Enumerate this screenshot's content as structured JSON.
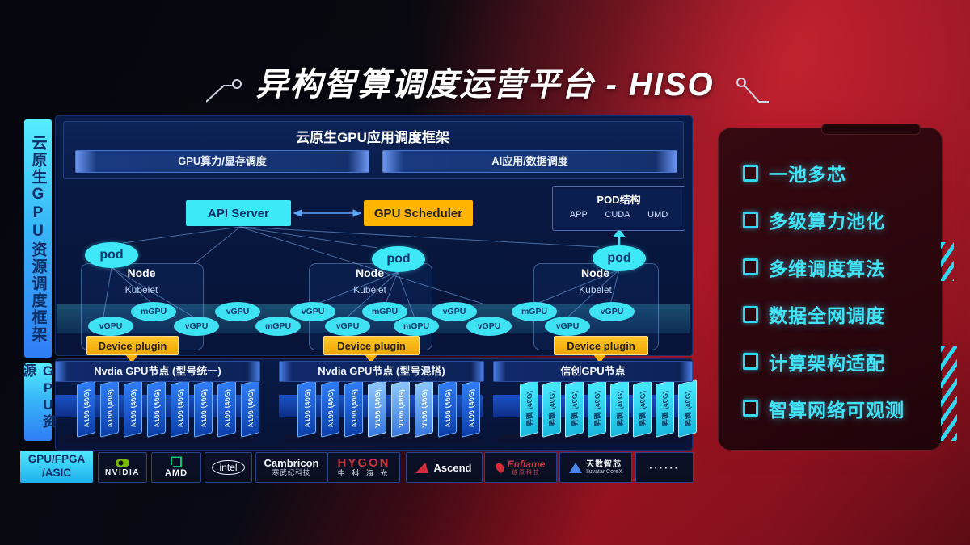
{
  "title": {
    "text": "异构智算调度运营平台 - HISO"
  },
  "sidebar": {
    "bar1": "云原生GPU资源调度框架",
    "bar2": "GPU资源"
  },
  "framework": {
    "heading": "云原生GPU应用调度框架",
    "left_bar": "GPU算力/显存调度",
    "right_bar": "AI应用/数据调度"
  },
  "scheduler": {
    "api_server": "API Server",
    "gpu_scheduler": "GPU Scheduler"
  },
  "pod_struct": {
    "title": "POD结构",
    "items": [
      "APP",
      "CUDA",
      "UMD"
    ]
  },
  "node_groups": [
    {
      "node": "Node",
      "kubelet": "Kubelet",
      "pod": "pod",
      "device_plugin": "Device plugin"
    },
    {
      "node": "Node",
      "kubelet": "Kubelet",
      "pod": "pod",
      "device_plugin": "Device plugin"
    },
    {
      "node": "Node",
      "kubelet": "Kubelet",
      "pod": "pod",
      "device_plugin": "Device plugin"
    }
  ],
  "gpu_ellipses": [
    {
      "label": "vGPU",
      "row": "low"
    },
    {
      "label": "mGPU",
      "row": "high"
    },
    {
      "label": "vGPU",
      "row": "low"
    },
    {
      "label": "vGPU",
      "row": "high"
    },
    {
      "label": "mGPU",
      "row": "low"
    },
    {
      "label": "vGPU",
      "row": "high"
    },
    {
      "label": "vGPU",
      "row": "low"
    },
    {
      "label": "mGPU",
      "row": "high"
    },
    {
      "label": "mGPU",
      "row": "low"
    },
    {
      "label": "vGPU",
      "row": "high"
    },
    {
      "label": "vGPU",
      "row": "low"
    },
    {
      "label": "mGPU",
      "row": "high"
    },
    {
      "label": "vGPU",
      "row": "low"
    },
    {
      "label": "vGPU",
      "row": "high"
    }
  ],
  "gpu_sections": [
    {
      "bar_label": "Nvdia GPU节点 (型号统一)",
      "cards": [
        "A100 (40G)",
        "A100 (40G)",
        "A100 (40G)",
        "A100 (40G)",
        "A100 (40G)",
        "A100 (40G)",
        "A100 (40G)",
        "A100 (40G)"
      ]
    },
    {
      "bar_label": "Nvdia GPU节点 (型号混搭)",
      "cards": [
        "A100 (40G)",
        "A100 (40G)",
        "A100 (40G)",
        "V100 (40G)",
        "V100 (40G)",
        "V100 (40G)",
        "A100 (40G)",
        "A100 (40G)"
      ]
    },
    {
      "bar_label": "信创GPU节点",
      "cards": [
        "昇腾 (40G)",
        "昇腾 (40G)",
        "昇腾 (40G)",
        "昇腾 (40G)",
        "昇腾 (40G)",
        "昇腾 (40G)",
        "昇腾 (40G)",
        "昇腾 (40G)"
      ]
    }
  ],
  "vendors": {
    "label_line1": "GPU/FPGA",
    "label_line2": "/ASIC",
    "tiles": [
      {
        "style": "nvidia",
        "icon": "nvidia-icon",
        "lines": [
          "NVIDIA"
        ]
      },
      {
        "style": "amd",
        "icon": "amd-icon",
        "lines": [
          "AMD"
        ]
      },
      {
        "style": "intel",
        "icon": "intel-oval-icon",
        "lines": [
          "intel"
        ]
      },
      {
        "style": "cambricon",
        "icon": "",
        "lines": [
          "Cambricon",
          "寒武纪科技"
        ]
      },
      {
        "style": "hygon",
        "icon": "",
        "lines": [
          "HYGON",
          "中 科 海 光"
        ]
      },
      {
        "style": "ascend",
        "icon": "ascend-icon",
        "lines": [
          "Ascend"
        ]
      },
      {
        "style": "enflame",
        "icon": "enflame-icon",
        "lines": [
          "Enflame",
          "燧原科技"
        ]
      },
      {
        "style": "iluvatar",
        "icon": "iluvatar-icon",
        "lines": [
          "天数智芯",
          "Iluvatar CoreX"
        ]
      },
      {
        "style": "dots",
        "icon": "",
        "lines": [
          "······"
        ]
      }
    ]
  },
  "features": {
    "items": [
      "一池多芯",
      "多级算力池化",
      "多维调度算法",
      "数据全网调度",
      "计算架构适配",
      "智算网络可观测"
    ]
  },
  "colors": {
    "accent_cyan": "#3de6f7",
    "accent_yellow": "#ffb402",
    "nvidia_green": "#76b900",
    "brand_red": "#c8333a",
    "card_blue": "#2d6ef0",
    "panel_navy": "#081b46",
    "features_cyan": "#41e3f6"
  }
}
